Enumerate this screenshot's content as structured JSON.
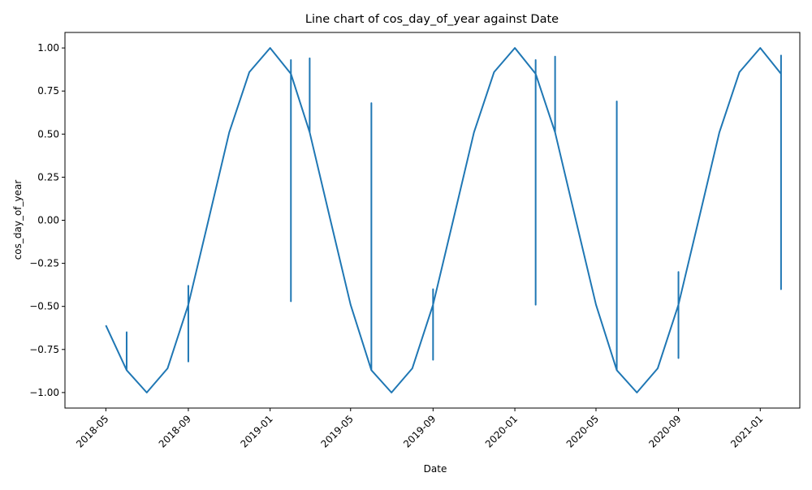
{
  "chart_data": {
    "type": "line",
    "title": "Line chart of cos_day_of_year against Date",
    "x_label": "Date",
    "y_label": "cos_day_of_year",
    "x": [
      "2018-05",
      "2018-06",
      "2018-06",
      "2018-06",
      "2018-07",
      "2018-08",
      "2018-09",
      "2018-09",
      "2018-09",
      "2018-09",
      "2018-10",
      "2018-11",
      "2018-12",
      "2019-01",
      "2019-02",
      "2019-02",
      "2019-02",
      "2019-02",
      "2019-03",
      "2019-03",
      "2019-03",
      "2019-04",
      "2019-05",
      "2019-06",
      "2019-06",
      "2019-06",
      "2019-07",
      "2019-08",
      "2019-09",
      "2019-09",
      "2019-09",
      "2019-09",
      "2019-10",
      "2019-11",
      "2019-12",
      "2020-01",
      "2020-02",
      "2020-02",
      "2020-02",
      "2020-02",
      "2020-03",
      "2020-03",
      "2020-03",
      "2020-04",
      "2020-05",
      "2020-06",
      "2020-06",
      "2020-06",
      "2020-07",
      "2020-08",
      "2020-09",
      "2020-09",
      "2020-09",
      "2020-09",
      "2020-10",
      "2020-11",
      "2020-12",
      "2021-01",
      "2021-02",
      "2021-02",
      "2021-02",
      "2021-02",
      "2021-02"
    ],
    "series": [
      {
        "name": "cos_day_of_year",
        "color": "#1f77b4",
        "values": [
          -0.61,
          -0.87,
          -0.65,
          -0.87,
          -1.0,
          -0.86,
          -0.49,
          -0.82,
          -0.38,
          -0.49,
          0.0,
          0.51,
          0.86,
          1.0,
          0.85,
          -0.47,
          0.93,
          0.85,
          0.51,
          0.94,
          0.51,
          0.0,
          -0.49,
          -0.87,
          0.68,
          -0.87,
          -1.0,
          -0.86,
          -0.49,
          -0.81,
          -0.4,
          -0.49,
          0.0,
          0.51,
          0.86,
          1.0,
          0.85,
          -0.49,
          0.93,
          0.85,
          0.51,
          0.95,
          0.51,
          0.0,
          -0.49,
          -0.87,
          0.69,
          -0.87,
          -1.0,
          -0.86,
          -0.49,
          -0.8,
          -0.3,
          -0.49,
          0.0,
          0.51,
          0.86,
          1.0,
          0.85,
          -0.4,
          0.95,
          0.88,
          0.96
        ]
      }
    ],
    "xlim": [
      "2018-03",
      "2021-03"
    ],
    "xticks": [
      "2018-05",
      "2018-09",
      "2019-01",
      "2019-05",
      "2019-09",
      "2020-01",
      "2020-05",
      "2020-09",
      "2021-01"
    ],
    "ylim": [
      -1.09,
      1.09
    ],
    "yticks": [
      {
        "value": -1,
        "label": "−1.00"
      },
      {
        "value": -0.75,
        "label": "−0.75"
      },
      {
        "value": -0.5,
        "label": "−0.50"
      },
      {
        "value": -0.25,
        "label": "−0.25"
      },
      {
        "value": 0,
        "label": "0.00"
      },
      {
        "value": 0.25,
        "label": "0.25"
      },
      {
        "value": 0.5,
        "label": "0.50"
      },
      {
        "value": 0.75,
        "label": "0.75"
      },
      {
        "value": 1,
        "label": "1.00"
      }
    ],
    "grid": false
  }
}
